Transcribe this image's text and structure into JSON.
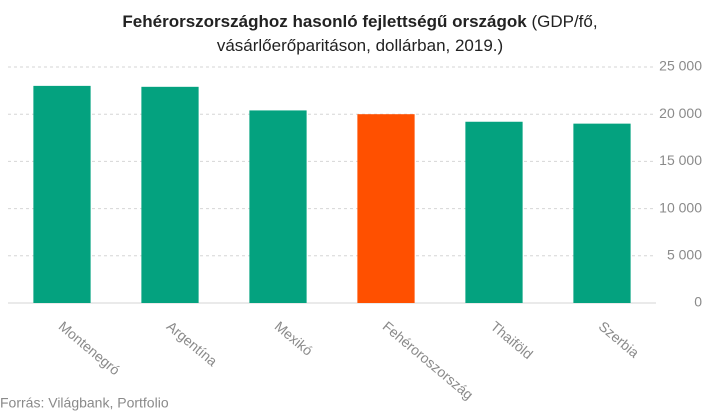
{
  "chart_data": {
    "type": "bar",
    "title": {
      "bold": "Fehérorszországhoz hasonló fejlettségű országok",
      "normal": "(GDP/fő, vásárlőerőparitáson, dollárban, 2019.)"
    },
    "categories": [
      "Montenegró",
      "Argentína",
      "Mexikó",
      "Fehéroroszország",
      "Thaiföld",
      "Szerbia"
    ],
    "values": [
      23000,
      22900,
      20400,
      20000,
      19200,
      19000
    ],
    "colors": [
      "#04a27f",
      "#04a27f",
      "#04a27f",
      "#ff5000",
      "#04a27f",
      "#04a27f"
    ],
    "ylim": [
      0,
      25000
    ],
    "yticks": [
      0,
      {
        "value": 5000,
        "label": "5 000"
      },
      {
        "value": 10000,
        "label": "10 000"
      },
      {
        "value": 15000,
        "label": "15 000"
      },
      {
        "value": 20000,
        "label": "20 000"
      },
      {
        "value": 25000,
        "label": "25 000"
      }
    ],
    "y_axis_side": "right",
    "grid": true,
    "source": "Forrás: Világbank, Portfolio"
  }
}
